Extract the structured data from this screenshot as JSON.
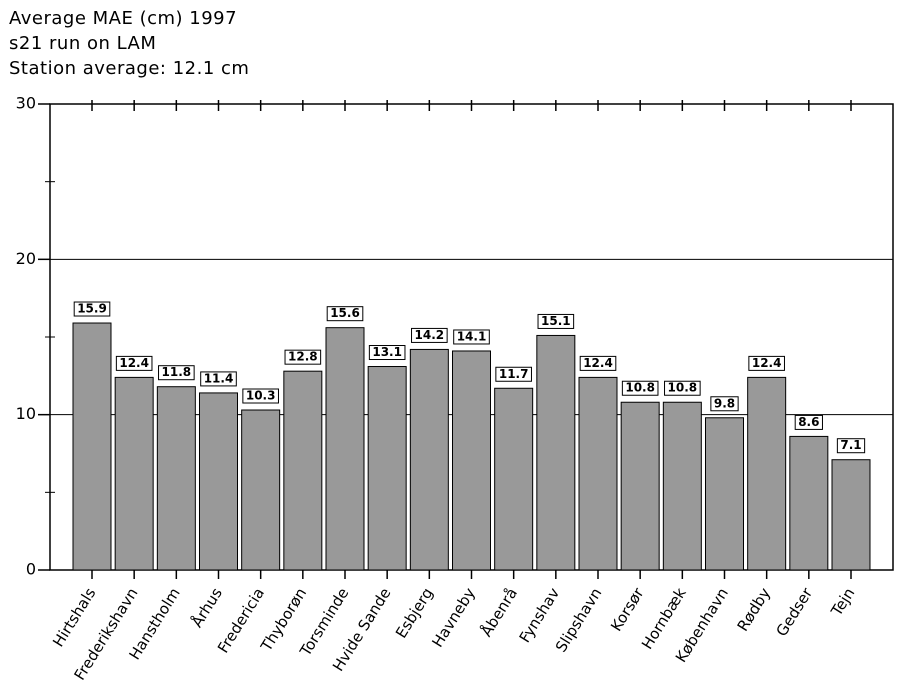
{
  "chart_data": {
    "type": "bar",
    "title": "Average MAE (cm) 1997",
    "subtitle": "s21 run on LAM",
    "note": "Station average: 12.1 cm",
    "categories": [
      "Hirtshals",
      "Frederikshavn",
      "Hanstholm",
      "Århus",
      "Fredericia",
      "Thyborøn",
      "Torsminde",
      "Hvide Sande",
      "Esbjerg",
      "Havneby",
      "Åbenrå",
      "Fynshav",
      "Slipshavn",
      "Korsør",
      "Hornbæk",
      "København",
      "Rødby",
      "Gedser",
      "Tejn"
    ],
    "values": [
      15.9,
      12.4,
      11.8,
      11.4,
      10.3,
      12.8,
      15.6,
      13.1,
      14.2,
      14.1,
      11.7,
      15.1,
      12.4,
      10.8,
      10.8,
      9.8,
      12.4,
      8.6,
      7.1
    ],
    "color": "#999999",
    "ylim": [
      0,
      30
    ],
    "yticks": [
      0,
      10,
      20,
      30
    ],
    "minor_yticks": [
      5,
      15,
      25
    ],
    "grid": true
  }
}
